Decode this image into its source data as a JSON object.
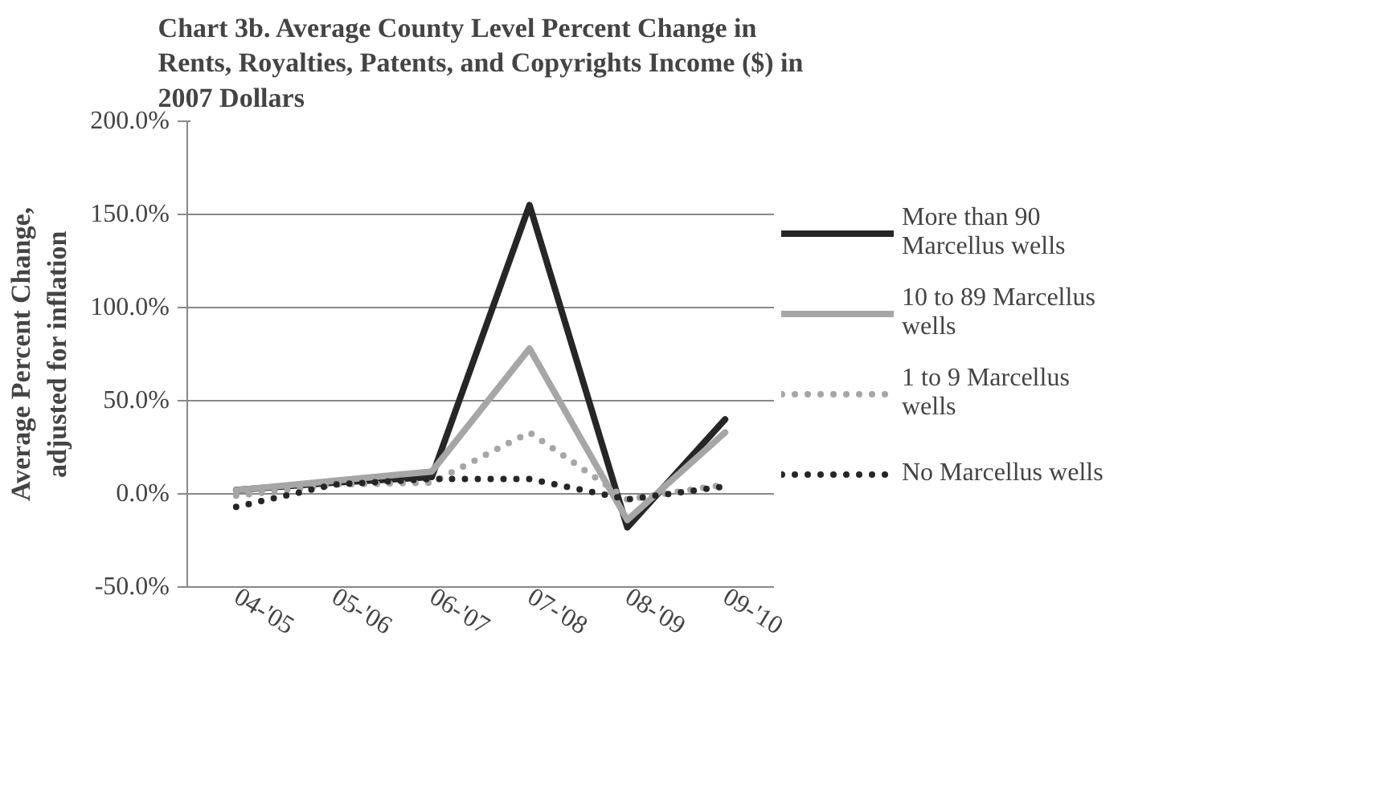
{
  "chart_data": {
    "type": "line",
    "title": "Chart 3b. Average County Level  Percent Change in Rents, Royalties, Patents, and Copyrights Income ($) in 2007 Dollars",
    "ylabel": "Average Percent Change, adjusted for inflation",
    "categories": [
      "04-'05",
      "05-'06",
      "06-'07",
      "07-'08",
      "08-'09",
      "09-'10"
    ],
    "series": [
      {
        "name": "More than 90 Marcellus wells",
        "color": "#262626",
        "values": [
          2,
          6,
          9,
          155,
          -18,
          40
        ],
        "line_style": "solid"
      },
      {
        "name": "10 to 89 Marcellus wells",
        "color": "#a6a6a6",
        "values": [
          2,
          7,
          12,
          78,
          -14,
          33
        ],
        "line_style": "solid"
      },
      {
        "name": "1 to 9 Marcellus wells",
        "color": "#a6a6a6",
        "values": [
          -1,
          5,
          6,
          33,
          -3,
          5
        ],
        "line_style": "dotted"
      },
      {
        "name": "No Marcellus wells",
        "color": "#262626",
        "values": [
          -7,
          5,
          8,
          8,
          -3,
          4
        ],
        "line_style": "dotted"
      }
    ],
    "ylim": [
      -50,
      200
    ],
    "yticks": [
      {
        "value": -50,
        "label": "-50.0%"
      },
      {
        "value": 0,
        "label": "0.0%"
      },
      {
        "value": 50,
        "label": "50.0%"
      },
      {
        "value": 100,
        "label": "100.0%"
      },
      {
        "value": 150,
        "label": "150.0%"
      },
      {
        "value": 200,
        "label": "200.0%"
      }
    ],
    "grid": "y",
    "legend": "right",
    "marker": "none"
  }
}
